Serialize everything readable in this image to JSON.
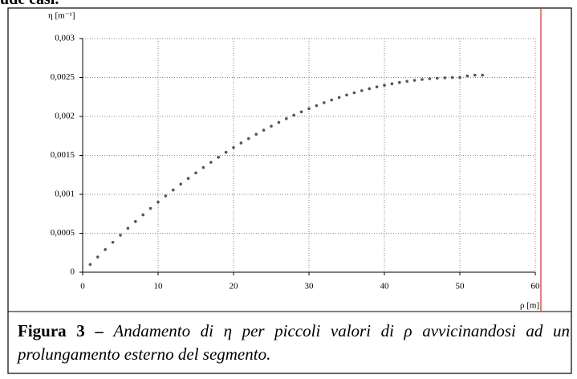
{
  "top_text": "ude casi.",
  "chart_data": {
    "type": "scatter",
    "xlabel": "ρ [m]",
    "ylabel": "η [m⁻¹]",
    "x": [
      1,
      2,
      3,
      4,
      5,
      6,
      7,
      8,
      9,
      10,
      11,
      12,
      13,
      14,
      15,
      16,
      17,
      18,
      19,
      20,
      21,
      22,
      23,
      24,
      25,
      26,
      27,
      28,
      29,
      30,
      31,
      32,
      33,
      34,
      35,
      36,
      37,
      38,
      39,
      40,
      41,
      42,
      43,
      44,
      45,
      46,
      47,
      48,
      49,
      50,
      51,
      52,
      53
    ],
    "values": [
      9.9e-05,
      0.000196,
      0.000291,
      0.000384,
      0.000475,
      0.000564,
      0.000651,
      0.000736,
      0.000819,
      0.0009,
      0.000979,
      0.001056,
      0.001131,
      0.001204,
      0.001275,
      0.001344,
      0.001411,
      0.001476,
      0.001539,
      0.0016,
      0.001659,
      0.001716,
      0.001771,
      0.001824,
      0.001875,
      0.001924,
      0.001971,
      0.002016,
      0.002059,
      0.0021,
      0.002139,
      0.002176,
      0.002211,
      0.002244,
      0.002275,
      0.002304,
      0.002331,
      0.002356,
      0.002379,
      0.0024,
      0.002419,
      0.002436,
      0.002451,
      0.002464,
      0.002475,
      0.002484,
      0.002491,
      0.002496,
      0.002499,
      0.0025,
      0.00252,
      0.00253,
      0.00253
    ],
    "color": "#555555",
    "xlim": [
      0,
      60
    ],
    "ylim": [
      0,
      0.003
    ],
    "xticks": [
      0,
      10,
      20,
      30,
      40,
      50,
      60
    ],
    "yticks": [
      0,
      {
        "value": 0.0005,
        "label": "0,0005"
      },
      {
        "value": 0.001,
        "label": "0,001"
      },
      {
        "value": 0.0015,
        "label": "0,0015"
      },
      {
        "value": 0.002,
        "label": "0,002"
      },
      {
        "value": 0.0025,
        "label": "0,0025"
      },
      {
        "value": 0.003,
        "label": "0,003"
      }
    ],
    "grid": true
  },
  "caption": {
    "label": "Figura 3 –",
    "text": "Andamento di η per piccoli valori di ρ avvicinandosi ad un prolungamento esterno del segmento."
  }
}
